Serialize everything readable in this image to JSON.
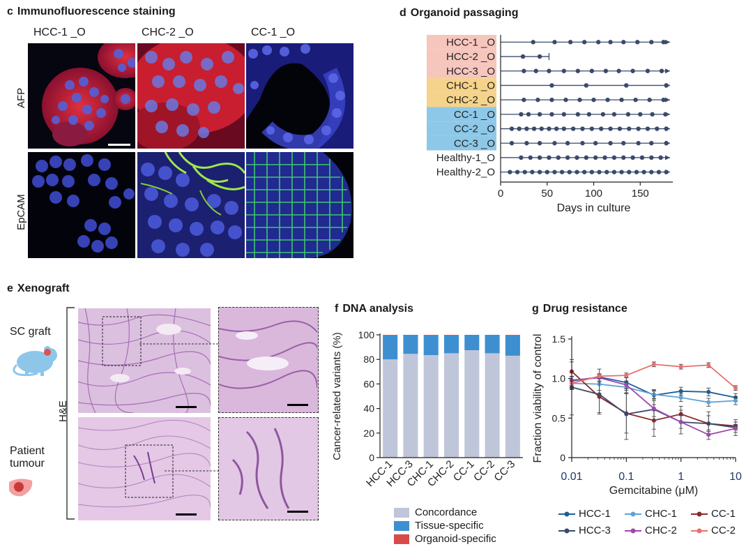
{
  "panel_c": {
    "letter": "c",
    "title": "Immunofluorescence staining",
    "columns": [
      "HCC-1 _O",
      "CHC-2 _O",
      "CC-1 _O"
    ],
    "rows": [
      "AFP",
      "EpCAM"
    ]
  },
  "panel_d": {
    "letter": "d",
    "title": "Organoid passaging",
    "xlabel": "Days in culture",
    "xticks": [
      "0",
      "50",
      "100",
      "150"
    ]
  },
  "panel_e": {
    "letter": "e",
    "title": "Xenograft",
    "sc_graft": "SC graft",
    "patient_tumour_1": "Patient",
    "patient_tumour_2": "tumour",
    "stain": "H&E"
  },
  "panel_f": {
    "letter": "f",
    "title": "DNA analysis",
    "ylabel": "Cancer-related variants (%)",
    "legend": [
      "Concordance",
      "Tissue-specific",
      "Organoid-specific"
    ]
  },
  "panel_g": {
    "letter": "g",
    "title": "Drug resistance",
    "ylabel": "Fraction viability of control",
    "xlabel": "Gemcitabine (μM)",
    "legend": [
      "HCC-1",
      "CHC-1",
      "CC-1",
      "HCC-3",
      "CHC-2",
      "CC-2"
    ]
  },
  "chart_data": [
    {
      "id": "organoid-passaging",
      "type": "scatter",
      "title": "Organoid passaging",
      "xlabel": "Days in culture",
      "xlim": [
        0,
        185
      ],
      "categories": [
        "HCC-1_O",
        "HCC-2_O",
        "HCC-3_O",
        "CHC-1_O",
        "CHC-2_O",
        "CC-1_O",
        "CC-2_O",
        "CC-3_O",
        "Healthy-1_O",
        "Healthy-2_O"
      ],
      "category_labels": [
        "HCC-1 _O",
        "HCC-2 _O",
        "HCC-3 _O",
        "CHC-1 _O",
        "CHC-2 _O",
        "CC-1 _O",
        "CC-2 _O",
        "CC-3 _O",
        "Healthy-1_O",
        "Healthy-2_O"
      ],
      "group_colors": [
        "#f6c6bd",
        "#f6c6bd",
        "#f6c6bd",
        "#f5d38a",
        "#f5d38a",
        "#8ec8e8",
        "#8ec8e8",
        "#8ec8e8",
        "#ffffff",
        "#ffffff"
      ],
      "end_days": [
        182,
        52,
        182,
        182,
        182,
        182,
        182,
        182,
        182,
        182
      ],
      "continuing": [
        true,
        false,
        true,
        true,
        true,
        true,
        true,
        true,
        true,
        true
      ],
      "passage_days": [
        [
          35,
          58,
          75,
          90,
          105,
          118,
          132,
          147,
          162,
          175
        ],
        [
          24,
          42
        ],
        [
          25,
          38,
          52,
          68,
          83,
          98,
          113,
          127,
          142,
          158,
          173
        ],
        [
          55,
          92,
          135,
          178
        ],
        [
          25,
          40,
          55,
          70,
          85,
          100,
          115,
          130,
          145,
          160,
          175
        ],
        [
          22,
          30,
          42,
          55,
          68,
          83,
          95,
          110,
          122,
          137,
          150,
          163,
          177
        ],
        [
          12,
          20,
          28,
          36,
          44,
          52,
          60,
          68,
          78,
          88,
          98,
          108,
          118,
          128,
          138,
          148,
          158,
          168,
          178
        ],
        [
          12,
          28,
          42,
          58,
          72,
          88,
          102,
          118,
          132,
          148,
          162,
          178
        ],
        [
          22,
          32,
          42,
          52,
          62,
          72,
          82,
          92,
          102,
          112,
          122,
          132,
          142,
          152,
          162,
          172
        ],
        [
          10,
          18,
          26,
          34,
          42,
          50,
          58,
          66,
          74,
          82,
          90,
          98,
          106,
          114,
          122,
          130,
          138,
          146,
          154,
          162,
          170,
          178
        ]
      ]
    },
    {
      "id": "dna-analysis",
      "type": "bar",
      "title": "DNA analysis",
      "ylabel": "Cancer-related variants (%)",
      "ylim": [
        0,
        100
      ],
      "yticks": [
        0,
        20,
        40,
        60,
        80,
        100
      ],
      "categories": [
        "HCC-1",
        "HCC-3",
        "CHC-1",
        "CHC-2",
        "CC-1",
        "CC-2",
        "CC-3"
      ],
      "series": [
        {
          "name": "Concordance",
          "color": "#c0c6d9",
          "values": [
            80,
            84.5,
            83.5,
            85,
            87.5,
            85,
            83
          ]
        },
        {
          "name": "Tissue-specific",
          "color": "#3e8fd0",
          "values": [
            19.5,
            15.5,
            16,
            14.5,
            12.5,
            15,
            16.5
          ]
        },
        {
          "name": "Organoid-specific",
          "color": "#d94b4b",
          "values": [
            0.5,
            0,
            0.5,
            0.5,
            0,
            0,
            0.5
          ]
        }
      ]
    },
    {
      "id": "drug-resistance",
      "type": "line",
      "title": "Drug resistance",
      "xlabel": "Gemcitabine (μM)",
      "ylabel": "Fraction viability of control",
      "xscale": "log",
      "xlim": [
        0.01,
        10
      ],
      "xticks": [
        "0.01",
        "0.1",
        "1",
        "10"
      ],
      "ylim": [
        0,
        1.5
      ],
      "yticks": [
        "0",
        "0.5",
        "1.0",
        "1.5"
      ],
      "x": [
        0.01,
        0.032,
        0.1,
        0.32,
        1,
        3.2,
        10
      ],
      "series": [
        {
          "name": "HCC-1",
          "color": "#1d5e96",
          "values": [
            0.97,
            1.02,
            0.95,
            0.79,
            0.84,
            0.83,
            0.76
          ],
          "err": [
            0.1,
            0.1,
            0.1,
            0.05,
            0.05,
            0.05,
            0.05
          ]
        },
        {
          "name": "CHC-1",
          "color": "#5fa3d8",
          "values": [
            0.94,
            0.93,
            0.89,
            0.8,
            0.76,
            0.7,
            0.72
          ],
          "err": [
            0.08,
            0.08,
            0.08,
            0.05,
            0.05,
            0.05,
            0.05
          ]
        },
        {
          "name": "CC-1",
          "color": "#8b2a2a",
          "values": [
            1.09,
            0.77,
            0.56,
            0.47,
            0.55,
            0.43,
            0.4
          ],
          "err": [
            0.12,
            0.2,
            0.25,
            0.2,
            0.1,
            0.1,
            0.05
          ]
        },
        {
          "name": "HCC-3",
          "color": "#3a4a6b",
          "values": [
            0.89,
            0.8,
            0.55,
            0.61,
            0.45,
            0.43,
            0.38
          ],
          "err": [
            0.35,
            0.25,
            0.32,
            0.25,
            0.15,
            0.15,
            0.1
          ]
        },
        {
          "name": "CHC-2",
          "color": "#a048b0",
          "values": [
            0.98,
            1.01,
            0.92,
            0.62,
            0.45,
            0.29,
            0.37
          ],
          "err": [
            0.05,
            0.05,
            0.1,
            0.1,
            0.08,
            0.06,
            0.05
          ]
        },
        {
          "name": "CC-2",
          "color": "#e87070",
          "values": [
            0.94,
            1.03,
            1.04,
            1.18,
            1.15,
            1.17,
            0.88
          ],
          "err": [
            0.03,
            0.03,
            0.03,
            0.03,
            0.03,
            0.03,
            0.03
          ]
        }
      ]
    }
  ]
}
